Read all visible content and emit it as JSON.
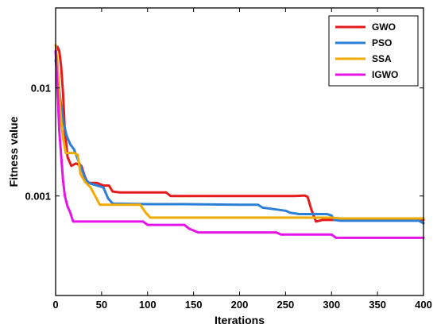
{
  "chart_data": {
    "type": "line",
    "xlabel": "Iterations",
    "ylabel": "Fitness value",
    "xlim": [
      0,
      400
    ],
    "ylim": [
      0.00012,
      0.055
    ],
    "yscale": "log",
    "x_ticks": [
      0,
      50,
      100,
      150,
      200,
      250,
      300,
      350,
      400
    ],
    "y_ticks": [
      0.01,
      0.001
    ],
    "y_tick_labels": [
      "0.01",
      "0.001"
    ],
    "grid": false,
    "legend_position": "top-right",
    "series": [
      {
        "name": "GWO",
        "color": "#e41a1c",
        "points": [
          [
            0,
            0.021
          ],
          [
            2,
            0.024
          ],
          [
            4,
            0.022
          ],
          [
            6,
            0.016
          ],
          [
            8,
            0.009
          ],
          [
            10,
            0.004
          ],
          [
            13,
            0.0023
          ],
          [
            17,
            0.0019
          ],
          [
            22,
            0.002
          ],
          [
            28,
            0.0019
          ],
          [
            32,
            0.0015
          ],
          [
            35,
            0.00132
          ],
          [
            45,
            0.00132
          ],
          [
            52,
            0.00125
          ],
          [
            58,
            0.00125
          ],
          [
            62,
            0.0011
          ],
          [
            70,
            0.00108
          ],
          [
            120,
            0.00108
          ],
          [
            125,
            0.001
          ],
          [
            200,
            0.001
          ],
          [
            260,
            0.001
          ],
          [
            271,
            0.00101
          ],
          [
            274,
            0.00098
          ],
          [
            278,
            0.00075
          ],
          [
            283,
            0.00058
          ],
          [
            290,
            0.0006
          ],
          [
            300,
            0.0006
          ],
          [
            400,
            0.0006
          ]
        ]
      },
      {
        "name": "PSO",
        "color": "#2b7fd4",
        "points": [
          [
            0,
            0.018
          ],
          [
            2,
            0.014
          ],
          [
            5,
            0.008
          ],
          [
            8,
            0.005
          ],
          [
            12,
            0.0036
          ],
          [
            16,
            0.003
          ],
          [
            20,
            0.0027
          ],
          [
            24,
            0.0022
          ],
          [
            28,
            0.0018
          ],
          [
            33,
            0.0014
          ],
          [
            38,
            0.0013
          ],
          [
            45,
            0.00125
          ],
          [
            52,
            0.0012
          ],
          [
            57,
            0.00095
          ],
          [
            62,
            0.00085
          ],
          [
            100,
            0.00084
          ],
          [
            140,
            0.00084
          ],
          [
            200,
            0.00083
          ],
          [
            220,
            0.00083
          ],
          [
            225,
            0.00078
          ],
          [
            240,
            0.00075
          ],
          [
            250,
            0.00073
          ],
          [
            255,
            0.0007
          ],
          [
            265,
            0.00068
          ],
          [
            295,
            0.00068
          ],
          [
            300,
            0.00066
          ],
          [
            303,
            0.0006
          ],
          [
            310,
            0.00059
          ],
          [
            395,
            0.00059
          ],
          [
            400,
            0.00056
          ]
        ]
      },
      {
        "name": "SSA",
        "color": "#f2a900",
        "points": [
          [
            0,
            0.025
          ],
          [
            2,
            0.017
          ],
          [
            4,
            0.009
          ],
          [
            6,
            0.005
          ],
          [
            8,
            0.0035
          ],
          [
            11,
            0.0025
          ],
          [
            20,
            0.0025
          ],
          [
            24,
            0.0024
          ],
          [
            27,
            0.0016
          ],
          [
            32,
            0.00135
          ],
          [
            38,
            0.0012
          ],
          [
            43,
            0.001
          ],
          [
            48,
            0.00083
          ],
          [
            55,
            0.00083
          ],
          [
            70,
            0.00083
          ],
          [
            92,
            0.00083
          ],
          [
            98,
            0.0007
          ],
          [
            103,
            0.00063
          ],
          [
            110,
            0.00063
          ],
          [
            250,
            0.00063
          ],
          [
            300,
            0.00063
          ],
          [
            310,
            0.00062
          ],
          [
            400,
            0.00062
          ]
        ]
      },
      {
        "name": "IGWO",
        "color": "#e614e6",
        "points": [
          [
            0,
            0.022
          ],
          [
            2,
            0.01
          ],
          [
            4,
            0.004
          ],
          [
            6,
            0.0024
          ],
          [
            8,
            0.0014
          ],
          [
            10,
            0.001
          ],
          [
            13,
            0.0008
          ],
          [
            16,
            0.0007
          ],
          [
            19,
            0.00058
          ],
          [
            40,
            0.00058
          ],
          [
            95,
            0.00058
          ],
          [
            100,
            0.00054
          ],
          [
            140,
            0.00054
          ],
          [
            145,
            0.0005
          ],
          [
            155,
            0.00046
          ],
          [
            160,
            0.00046
          ],
          [
            240,
            0.00046
          ],
          [
            245,
            0.00044
          ],
          [
            300,
            0.00044
          ],
          [
            305,
            0.00041
          ],
          [
            400,
            0.00041
          ]
        ]
      }
    ]
  }
}
